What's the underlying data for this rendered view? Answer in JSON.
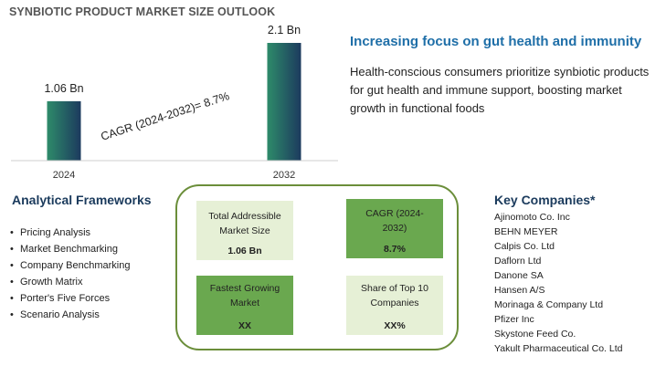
{
  "title": "SYNBIOTIC PRODUCT MARKET SIZE OUTLOOK",
  "chart_data": {
    "type": "bar",
    "categories": [
      "2024",
      "2032"
    ],
    "values": [
      1.06,
      2.1
    ],
    "value_labels": [
      "1.06 Bn",
      "2.1 Bn"
    ],
    "annotation": "CAGR (2024-2032)=  8.7%",
    "ylim": [
      0,
      2.1
    ],
    "bar_gradient": [
      "#2e8b6a",
      "#1c3a5e"
    ],
    "grid": false
  },
  "headline": "Increasing focus on gut health and immunity",
  "description": "Health-conscious consumers prioritize synbiotic products for gut health and immune support, boosting market growth in functional foods",
  "frameworks": {
    "title": "Analytical Frameworks",
    "items": [
      "Pricing Analysis",
      "Market Benchmarking",
      "Company Benchmarking",
      "Growth Matrix",
      "Porter's Five Forces",
      "Scenario Analysis"
    ]
  },
  "metrics": {
    "tam": {
      "label": "Total Addressible Market Size",
      "value": "1.06 Bn"
    },
    "cagr": {
      "label": "CAGR (2024-2032)",
      "value": "8.7%"
    },
    "fastest": {
      "label": "Fastest Growing Market",
      "value": "XX"
    },
    "share": {
      "label": "Share of Top 10 Companies",
      "value": "XX%"
    }
  },
  "companies": {
    "title": "Key Companies*",
    "items": [
      "Ajinomoto Co. Inc",
      "BEHN MEYER",
      "Calpis Co. Ltd",
      "Daflorn Ltd",
      "Danone SA",
      "Hansen A/S",
      "Morinaga & Company Ltd",
      "Pfizer Inc",
      "Skystone Feed Co.",
      "Yakult Pharmaceutical Co. Ltd"
    ]
  },
  "colors": {
    "accent_blue": "#1f6fa8",
    "panel_border": "#6b8e3a",
    "card_green": "#6aa84f",
    "card_light": "#e6f0d6"
  }
}
